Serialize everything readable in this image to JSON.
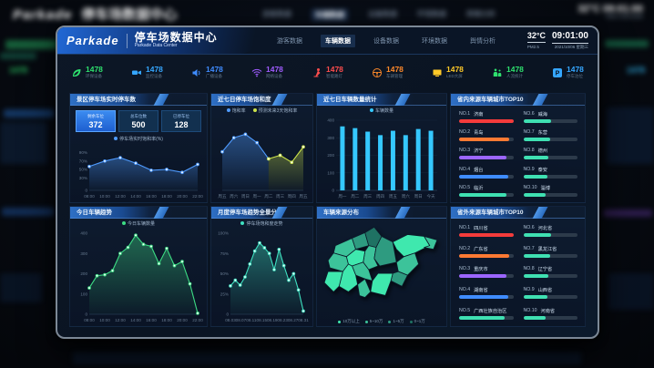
{
  "background": {
    "brand": "Parkade",
    "title": "停车场数据中心",
    "temperature": "32°C",
    "time": "09:01:00",
    "sub": "PM2.5  2021/10/06",
    "kpi_value": "1478"
  },
  "panel": {
    "header": {
      "brand": "Parkade",
      "title": "停车场数据中心",
      "subtitle": "Parkade Data Center",
      "nav": [
        {
          "label": "游客数据",
          "active": false
        },
        {
          "label": "车辆数据",
          "active": true
        },
        {
          "label": "设备数据",
          "active": false
        },
        {
          "label": "环境数据",
          "active": false
        },
        {
          "label": "舆情分析",
          "active": false
        }
      ],
      "temperature": "32°C",
      "time": "09:01:00",
      "pm": "PM2.5",
      "date": "2021/10/06 星期三"
    },
    "kpis": [
      {
        "icon": "leaf-icon",
        "value": "1478",
        "label": "环保设备",
        "color": "#2ee06e"
      },
      {
        "icon": "camera-icon",
        "value": "1478",
        "label": "监控设备",
        "color": "#35a6ff"
      },
      {
        "icon": "speaker-icon",
        "value": "1478",
        "label": "广播设备",
        "color": "#3f8cff"
      },
      {
        "icon": "wifi-icon",
        "value": "1478",
        "label": "网络设备",
        "color": "#a05cff"
      },
      {
        "icon": "lamp-icon",
        "value": "1478",
        "label": "智能路灯",
        "color": "#ff4d4d"
      },
      {
        "icon": "steering-wheel-icon",
        "value": "1478",
        "label": "车辆管理",
        "color": "#ff8a2a"
      },
      {
        "icon": "led-screen-icon",
        "value": "1478",
        "label": "LED大屏",
        "color": "#ffc928"
      },
      {
        "icon": "people-icon",
        "value": "1478",
        "label": "人流统计",
        "color": "#2ee06e"
      },
      {
        "icon": "parking-icon",
        "value": "1478",
        "label": "停车泊位",
        "color": "#35a6ff"
      }
    ],
    "realtime_stats": [
      {
        "label": "剩余车位",
        "value": "372",
        "highlight": true
      },
      {
        "label": "总车位数",
        "value": "500",
        "highlight": false
      },
      {
        "label": "已停车位",
        "value": "128",
        "highlight": false
      }
    ]
  },
  "chart_data": [
    {
      "id": "realtime_saturation",
      "type": "line",
      "title": "景区停车场实时停车数",
      "legend": [
        {
          "label": "停车场实时饱和率(%)",
          "color": "#4f9bff"
        }
      ],
      "x": [
        "08:00",
        "10:00",
        "12:00",
        "14:00",
        "16:00",
        "18:00",
        "20:00",
        "22:00"
      ],
      "series": [
        {
          "name": "停车场实时饱和率(%)",
          "color": "#4f9bff",
          "fill": true,
          "values": [
            57,
            70,
            78,
            65,
            48,
            50,
            43,
            62
          ]
        }
      ],
      "ylim": [
        0,
        100
      ],
      "yticks": [
        [
          0,
          "0"
        ],
        [
          30,
          "30%"
        ],
        [
          50,
          "50%"
        ],
        [
          70,
          "70%"
        ],
        [
          90,
          "90%"
        ]
      ]
    },
    {
      "id": "weekly_saturation",
      "type": "line",
      "title": "近七日停车场饱和度",
      "legend": [
        {
          "label": "饱和率",
          "color": "#4f9bff"
        },
        {
          "label": "预测未来3天饱和率",
          "color": "#cbe34a"
        }
      ],
      "x": [
        "周五",
        "周六",
        "周日",
        "周一",
        "周二",
        "周三",
        "周四",
        "周五"
      ],
      "series": [
        {
          "name": "饱和率",
          "color": "#4f9bff",
          "fill": true,
          "values": [
            55,
            75,
            80,
            68,
            45,
            null,
            null,
            null
          ]
        },
        {
          "name": "预测未来3天饱和率",
          "color": "#cbe34a",
          "fill": true,
          "values": [
            null,
            null,
            null,
            null,
            45,
            50,
            40,
            62
          ]
        }
      ],
      "ylim": [
        0,
        100
      ],
      "yticks": []
    },
    {
      "id": "weekly_vehicles",
      "type": "bar",
      "title": "近七日车辆数量统计",
      "legend": [
        {
          "label": "车辆数量",
          "color": "#35c8ff"
        }
      ],
      "x": [
        "周一",
        "周二",
        "周三",
        "周四",
        "周五",
        "周六",
        "周日",
        "今天"
      ],
      "series": [
        {
          "name": "车辆数量",
          "color": "#35c8ff",
          "values": [
            365,
            355,
            335,
            315,
            340,
            315,
            350,
            340
          ]
        }
      ],
      "ylim": [
        0,
        400
      ],
      "yticks": [
        [
          0,
          "0"
        ],
        [
          100,
          "100"
        ],
        [
          200,
          "200"
        ],
        [
          300,
          "300"
        ],
        [
          400,
          "400"
        ]
      ]
    },
    {
      "id": "city_top10",
      "type": "table",
      "title": "省内来源车辆城市TOP10",
      "items": [
        {
          "rank": "NO.1",
          "name": "济南",
          "value_pct": 100,
          "color": "#f43b3b"
        },
        {
          "rank": "NO.2",
          "name": "青岛",
          "value_pct": 93,
          "color": "#ff7a33"
        },
        {
          "rank": "NO.3",
          "name": "济宁",
          "value_pct": 87,
          "color": "#9b66ff"
        },
        {
          "rank": "NO.4",
          "name": "烟台",
          "value_pct": 90,
          "color": "#3f8cff"
        },
        {
          "rank": "NO.5",
          "name": "临沂",
          "value_pct": 88,
          "color": "#3fe0b2"
        },
        {
          "rank": "NO.6",
          "name": "威海",
          "value_pct": 52,
          "color": "#3fe0b2"
        },
        {
          "rank": "NO.7",
          "name": "东营",
          "value_pct": 50,
          "color": "#3fe0b2"
        },
        {
          "rank": "NO.8",
          "name": "德州",
          "value_pct": 46,
          "color": "#3fe0b2"
        },
        {
          "rank": "NO.9",
          "name": "泰安",
          "value_pct": 44,
          "color": "#3fe0b2"
        },
        {
          "rank": "NO.10",
          "name": "淄博",
          "value_pct": 42,
          "color": "#3fe0b2"
        }
      ]
    },
    {
      "id": "today_trend",
      "type": "area",
      "title": "今日车辆趋势",
      "legend": [
        {
          "label": "今日车辆数量",
          "color": "#3ddc84"
        }
      ],
      "x": [
        "08:00",
        "10:00",
        "12:00",
        "14:00",
        "16:00",
        "18:00",
        "20:00",
        "22:00"
      ],
      "series": [
        {
          "name": "今日车辆数量",
          "color": "#3ddc84",
          "fill": true,
          "values": [
            130,
            190,
            195,
            215,
            300,
            330,
            390,
            345,
            335,
            250,
            325,
            240,
            260,
            150,
            5
          ]
        }
      ],
      "ylim": [
        0,
        400
      ],
      "yticks": [
        [
          0,
          "0"
        ],
        [
          100,
          "100"
        ],
        [
          200,
          "200"
        ],
        [
          300,
          "300"
        ],
        [
          400,
          "400"
        ]
      ]
    },
    {
      "id": "monthly_trend",
      "type": "area",
      "title": "月度停车场趋势全景分析",
      "legend": [
        {
          "label": "停车场饱和度走势",
          "color": "#3fe0c0"
        }
      ],
      "x": [
        "08.03",
        "08.07",
        "08.11",
        "08.15",
        "08.19",
        "08.23",
        "08.27",
        "08.31"
      ],
      "series": [
        {
          "name": "停车场饱和度走势",
          "color": "#3fe0c0",
          "fill": true,
          "values": [
            35,
            42,
            36,
            46,
            62,
            78,
            88,
            82,
            75,
            55,
            80,
            60,
            42,
            50,
            30,
            4
          ]
        }
      ],
      "ylim": [
        0,
        100
      ],
      "yticks": [
        [
          0,
          "0"
        ],
        [
          25,
          "25%"
        ],
        [
          50,
          "50%"
        ],
        [
          75,
          "75%"
        ],
        [
          100,
          "100%"
        ]
      ]
    },
    {
      "id": "vehicle_origin_map",
      "type": "heatmap",
      "title": "车辆来源分布",
      "region": "山东省",
      "legend": [
        {
          "label": "10万以上",
          "color": "#3fe8ae"
        },
        {
          "label": "5~10万",
          "color": "#3cc39a"
        },
        {
          "label": "1~5万",
          "color": "#2e9b80"
        },
        {
          "label": "0~1万",
          "color": "#1f7263"
        }
      ]
    },
    {
      "id": "province_top10",
      "type": "table",
      "title": "省外来源车辆城市TOP10",
      "items": [
        {
          "rank": "NO.1",
          "name": "四川省",
          "value_pct": 100,
          "color": "#f43b3b"
        },
        {
          "rank": "NO.2",
          "name": "广东省",
          "value_pct": 93,
          "color": "#ff7a33"
        },
        {
          "rank": "NO.3",
          "name": "重庆市",
          "value_pct": 87,
          "color": "#9b66ff"
        },
        {
          "rank": "NO.4",
          "name": "湖南省",
          "value_pct": 90,
          "color": "#3f8cff"
        },
        {
          "rank": "NO.5",
          "name": "广西壮族自治区",
          "value_pct": 84,
          "color": "#3fe0b2"
        },
        {
          "rank": "NO.6",
          "name": "河北省",
          "value_pct": 52,
          "color": "#3fe0b2"
        },
        {
          "rank": "NO.7",
          "name": "黑龙江省",
          "value_pct": 50,
          "color": "#3fe0b2"
        },
        {
          "rank": "NO.8",
          "name": "辽宁省",
          "value_pct": 46,
          "color": "#3fe0b2"
        },
        {
          "rank": "NO.9",
          "name": "山西省",
          "value_pct": 44,
          "color": "#3fe0b2"
        },
        {
          "rank": "NO.10",
          "name": "河南省",
          "value_pct": 42,
          "color": "#3fe0b2"
        }
      ]
    }
  ]
}
